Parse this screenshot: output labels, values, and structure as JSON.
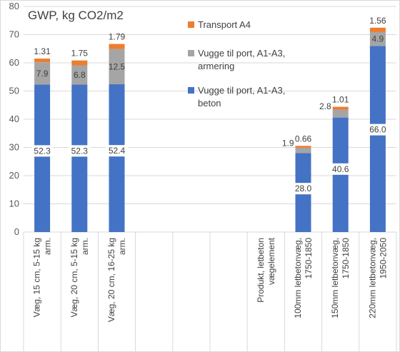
{
  "chart_data": {
    "type": "bar",
    "stacked": true,
    "title": "GWP, kg CO2/m2",
    "ylim": [
      0,
      80
    ],
    "yticks": [
      0,
      10,
      20,
      30,
      40,
      50,
      60,
      70,
      80
    ],
    "grid": true,
    "legend_position": "top-right",
    "categories": [
      [
        "Væg, 15 cm, 5-15 kg",
        "arm."
      ],
      [
        "Væg, 20 cm, 5-15 kg",
        "arm."
      ],
      [
        "Væg, 20 cm, 16-25 kg",
        "arm."
      ],
      [
        ""
      ],
      [
        ""
      ],
      [
        ""
      ],
      [
        "Produkt, letbeton",
        "vægelement"
      ],
      [
        "100mm letbetonvæg,",
        "1750-1850"
      ],
      [
        "150mm letbetonvæg,",
        "1750-1850"
      ],
      [
        "220mm letbetonvæg,",
        "1950-2050"
      ]
    ],
    "series": [
      {
        "name": "Vugge til port, A1-A3, beton",
        "legend_lines": [
          "Vugge til port, A1-A3,",
          "beton"
        ],
        "color": "#4472C4",
        "values": [
          52.3,
          52.3,
          52.4,
          null,
          null,
          null,
          null,
          28.0,
          40.6,
          66.0
        ],
        "labels": [
          "52.3",
          "52.3",
          "52.4",
          "",
          "",
          "",
          "",
          "28.0",
          "40.6",
          "66.0"
        ]
      },
      {
        "name": "Vugge til port, A1-A3, armering",
        "legend_lines": [
          "Vugge til port, A1-A3,",
          "armering"
        ],
        "color": "#A5A5A5",
        "values": [
          7.9,
          6.8,
          12.5,
          null,
          null,
          null,
          null,
          1.9,
          2.8,
          4.9
        ],
        "labels": [
          "7.9",
          "6.8",
          "12.5",
          "",
          "",
          "",
          "",
          "1.9",
          "2.8",
          "4.9"
        ]
      },
      {
        "name": "Transport A4",
        "legend_lines": [
          "Transport A4"
        ],
        "color": "#ED7D31",
        "values": [
          1.31,
          1.75,
          1.79,
          null,
          null,
          null,
          null,
          0.66,
          1.01,
          1.56
        ],
        "labels": [
          "1.31",
          "1.75",
          "1.79",
          "",
          "",
          "",
          "",
          "0.66",
          "1.01",
          "1.56"
        ]
      }
    ]
  }
}
